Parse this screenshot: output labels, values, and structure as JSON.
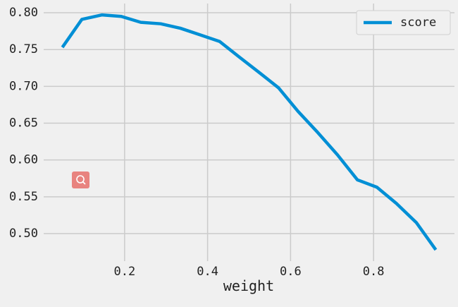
{
  "chart_data": {
    "type": "line",
    "x_label": "weight",
    "x": [
      0.05,
      0.097,
      0.145,
      0.192,
      0.239,
      0.287,
      0.334,
      0.382,
      0.429,
      0.476,
      0.524,
      0.571,
      0.618,
      0.666,
      0.713,
      0.761,
      0.808,
      0.855,
      0.903,
      0.95
    ],
    "series": [
      {
        "name": "score",
        "color": "#008fd5",
        "values": [
          0.753,
          0.791,
          0.797,
          0.795,
          0.787,
          0.785,
          0.779,
          0.77,
          0.761,
          0.74,
          0.719,
          0.698,
          0.666,
          0.637,
          0.607,
          0.573,
          0.563,
          0.541,
          0.515,
          0.478
        ]
      }
    ],
    "xlim": [
      0.005,
      0.995
    ],
    "ylim": [
      0.4626,
      0.8125
    ],
    "xticks": [
      0.2,
      0.4,
      0.6,
      0.8
    ],
    "yticks": [
      {
        "value": 0.5,
        "label": "0.50"
      },
      0.55,
      {
        "value": 0.6,
        "label": "0.60"
      },
      0.65,
      {
        "value": 0.7,
        "label": "0.70"
      },
      0.75,
      {
        "value": 0.8,
        "label": "0.80"
      }
    ],
    "grid": true,
    "legend": "upper right"
  }
}
